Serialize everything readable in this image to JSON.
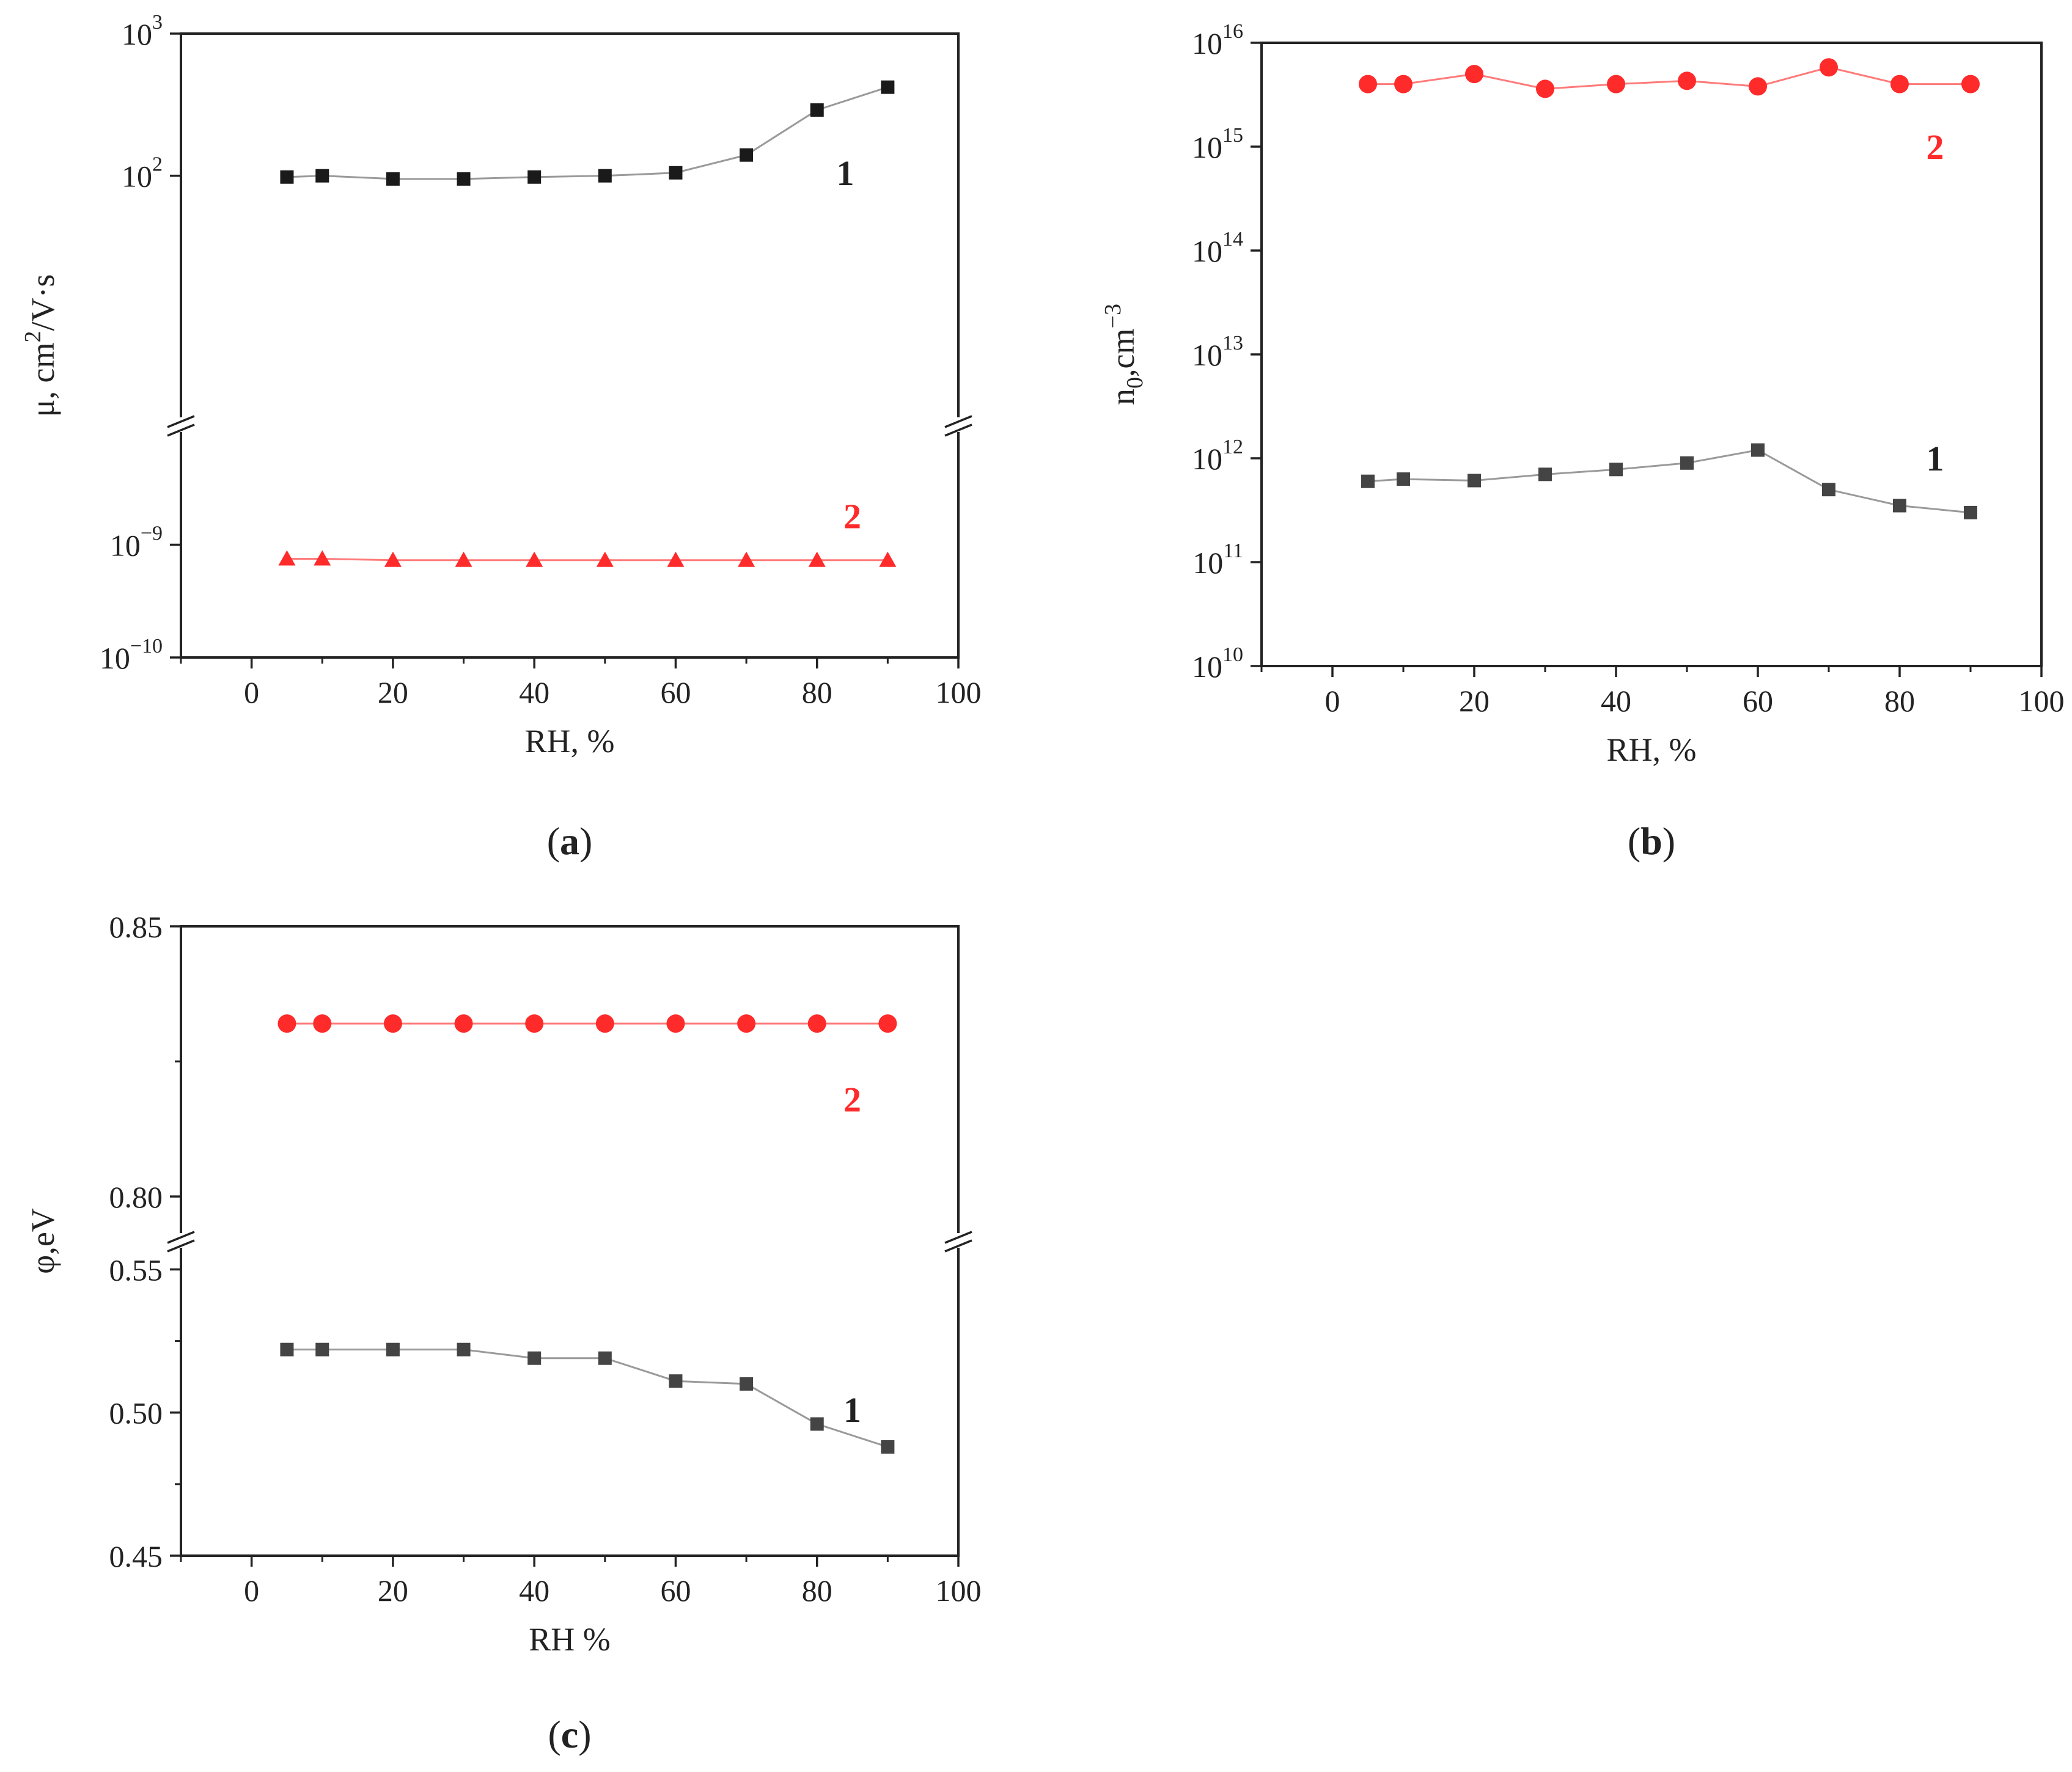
{
  "colors": {
    "series1": "#1a1a1a",
    "series1_b": "#444444",
    "series2": "#ff2a2a",
    "line1": "#9a9a9a",
    "line2": "#ff7a7a"
  },
  "chart_data": [
    {
      "id": "a",
      "type": "scatter",
      "caption": {
        "open": "(",
        "label": "a",
        "close": ")"
      },
      "xlabel": "RH, %",
      "ylabel": {
        "main": "μ, cm",
        "sup": "2",
        "tail": "/V·s"
      },
      "xlim": [
        -10,
        100
      ],
      "x_ticks": [
        0,
        20,
        40,
        60,
        80,
        100
      ],
      "y_scale": "log",
      "y_axis_break": true,
      "y_segments": [
        {
          "range": [
            1e-10,
            1e-08
          ],
          "ticks": [
            {
              "base": "10",
              "exp": "−10",
              "value": 1e-10
            },
            {
              "base": "10",
              "exp": "−9",
              "value": 1e-09
            }
          ]
        },
        {
          "range": [
            2,
            1000
          ],
          "ticks": [
            {
              "base": "10",
              "exp": "2",
              "value": 100
            },
            {
              "base": "10",
              "exp": "3",
              "value": 1000
            }
          ]
        }
      ],
      "series": [
        {
          "name": "1",
          "marker": "square",
          "x": [
            5,
            10,
            20,
            30,
            40,
            50,
            60,
            70,
            80,
            90
          ],
          "y": [
            98,
            100,
            95,
            95,
            98,
            100,
            105,
            140,
            290,
            420
          ]
        },
        {
          "name": "2",
          "marker": "triangle",
          "x": [
            5,
            10,
            20,
            30,
            40,
            50,
            60,
            70,
            80,
            90
          ],
          "y": [
            7.5e-10,
            7.5e-10,
            7.3e-10,
            7.3e-10,
            7.3e-10,
            7.3e-10,
            7.3e-10,
            7.3e-10,
            7.3e-10,
            7.3e-10
          ]
        }
      ],
      "annotations": [
        {
          "text": "1",
          "series": "1",
          "x": 84,
          "y": 105
        },
        {
          "text": "2",
          "series": "2",
          "x": 85,
          "y": 1.8e-09
        }
      ]
    },
    {
      "id": "b",
      "type": "scatter",
      "caption": {
        "open": "(",
        "label": "b",
        "close": ")"
      },
      "xlabel": "RH, %",
      "ylabel": {
        "main": "n",
        "sub": "0",
        "mid": ",cm",
        "sup": "−3"
      },
      "xlim": [
        -10,
        100
      ],
      "x_ticks": [
        0,
        20,
        40,
        60,
        80,
        100
      ],
      "y_scale": "log",
      "y_axis_break": false,
      "y_segments": [
        {
          "range": [
            10000000000.0,
            1e+16
          ],
          "ticks": [
            {
              "base": "10",
              "exp": "10",
              "value": 10000000000.0
            },
            {
              "base": "10",
              "exp": "11",
              "value": 100000000000.0
            },
            {
              "base": "10",
              "exp": "12",
              "value": 1000000000000.0
            },
            {
              "base": "10",
              "exp": "13",
              "value": 10000000000000.0
            },
            {
              "base": "10",
              "exp": "14",
              "value": 100000000000000.0
            },
            {
              "base": "10",
              "exp": "15",
              "value": 1000000000000000.0
            },
            {
              "base": "10",
              "exp": "16",
              "value": 1e+16
            }
          ]
        }
      ],
      "series": [
        {
          "name": "1",
          "marker": "square",
          "x": [
            5,
            10,
            20,
            30,
            40,
            50,
            60,
            70,
            80,
            90
          ],
          "y": [
            600000000000.0,
            630000000000.0,
            610000000000.0,
            700000000000.0,
            780000000000.0,
            900000000000.0,
            1200000000000.0,
            500000000000.0,
            350000000000.0,
            300000000000.0
          ]
        },
        {
          "name": "2",
          "marker": "circle",
          "x": [
            5,
            10,
            20,
            30,
            40,
            50,
            60,
            70,
            80,
            90
          ],
          "y": [
            4000000000000000.0,
            4000000000000000.0,
            5000000000000000.0,
            3600000000000000.0,
            4000000000000000.0,
            4300000000000000.0,
            3800000000000000.0,
            5800000000000000.0,
            4000000000000000.0,
            4000000000000000.0
          ]
        }
      ],
      "annotations": [
        {
          "text": "1",
          "series": "1",
          "x": 85,
          "y": 1000000000000.0
        },
        {
          "text": "2",
          "series": "2",
          "x": 85,
          "y": 1000000000000000.0
        }
      ]
    },
    {
      "id": "c",
      "type": "scatter",
      "caption": {
        "open": "(",
        "label": "c",
        "close": ")"
      },
      "xlabel": "RH  %",
      "ylabel": {
        "main": "φ,eV"
      },
      "xlim": [
        -10,
        100
      ],
      "x_ticks": [
        0,
        20,
        40,
        60,
        80,
        100
      ],
      "y_scale": "linear",
      "y_axis_break": true,
      "y_segments": [
        {
          "range": [
            0.45,
            0.558
          ],
          "ticks": [
            {
              "label": "0.45",
              "value": 0.45
            },
            {
              "label": "0.50",
              "value": 0.5
            },
            {
              "label": "0.55",
              "value": 0.55
            }
          ]
        },
        {
          "range": [
            0.793,
            0.85
          ],
          "ticks": [
            {
              "label": "0.80",
              "value": 0.8
            },
            {
              "label": "0.85",
              "value": 0.85
            }
          ]
        }
      ],
      "series": [
        {
          "name": "1",
          "marker": "square",
          "x": [
            5,
            10,
            20,
            30,
            40,
            50,
            60,
            70,
            80,
            90
          ],
          "y": [
            0.522,
            0.522,
            0.522,
            0.522,
            0.519,
            0.519,
            0.511,
            0.51,
            0.496,
            0.488
          ]
        },
        {
          "name": "2",
          "marker": "circle",
          "x": [
            5,
            10,
            20,
            30,
            40,
            50,
            60,
            70,
            80,
            90
          ],
          "y": [
            0.832,
            0.832,
            0.832,
            0.832,
            0.832,
            0.832,
            0.832,
            0.832,
            0.832,
            0.832
          ]
        }
      ],
      "annotations": [
        {
          "text": "1",
          "series": "1",
          "x": 85,
          "y": 0.501
        },
        {
          "text": "2",
          "series": "2",
          "x": 85,
          "y": 0.818
        }
      ]
    }
  ]
}
